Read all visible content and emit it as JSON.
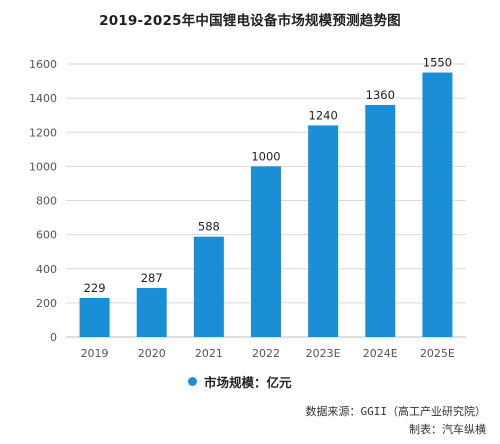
{
  "chart_data": {
    "type": "bar",
    "title": "2019-2025年中国锂电设备市场规模预测趋势图",
    "categories": [
      "2019",
      "2020",
      "2021",
      "2022",
      "2023E",
      "2024E",
      "2025E"
    ],
    "series": [
      {
        "name": "市场规模：亿元",
        "values": [
          229,
          287,
          588,
          1000,
          1240,
          1360,
          1550
        ],
        "data_labels": [
          "229",
          "287",
          "588",
          "1000",
          "1240",
          "1360",
          "1550"
        ],
        "color": "#1a8fd6"
      }
    ],
    "yticks": [
      "0",
      "200",
      "400",
      "600",
      "800",
      "1000",
      "1200",
      "1400",
      "1600"
    ],
    "ylim": [
      0,
      1600
    ],
    "grid": true,
    "legend_position": "bottom"
  },
  "footer": {
    "source": "数据来源：GGII（高工产业研究院）",
    "maker": "制表：汽车纵横"
  },
  "colors": {
    "bar": "#1a8fd6",
    "grid": "#d9d9d9",
    "axis_text": "#555555"
  }
}
